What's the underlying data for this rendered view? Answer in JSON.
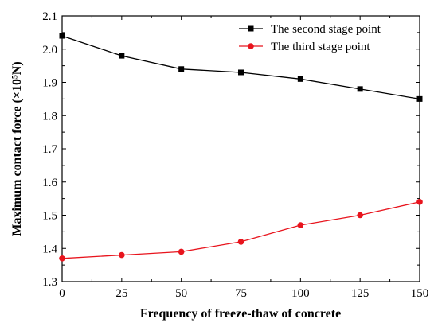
{
  "chart_data": {
    "type": "line",
    "xlabel": "Frequency of freeze-thaw of concrete",
    "ylabel": "Maximum contact force (×10⁵N)",
    "xlim": [
      0,
      150
    ],
    "ylim": [
      1.3,
      2.1
    ],
    "xticks": [
      "0",
      "25",
      "50",
      "75",
      "100",
      "125",
      "150"
    ],
    "yticks": [
      "1.3",
      "1.4",
      "1.5",
      "1.6",
      "1.7",
      "1.8",
      "1.9",
      "2.0",
      "2.1"
    ],
    "x": [
      0,
      25,
      50,
      75,
      100,
      125,
      150
    ],
    "series": [
      {
        "name": "The second stage point",
        "color": "#000000",
        "marker": "square",
        "values": [
          2.04,
          1.98,
          1.94,
          1.93,
          1.91,
          1.88,
          1.85
        ]
      },
      {
        "name": "The third stage point",
        "color": "#e8141d",
        "marker": "circle",
        "values": [
          1.37,
          1.38,
          1.39,
          1.42,
          1.47,
          1.5,
          1.54
        ]
      }
    ],
    "legend_position": "top-right",
    "grid": false
  }
}
